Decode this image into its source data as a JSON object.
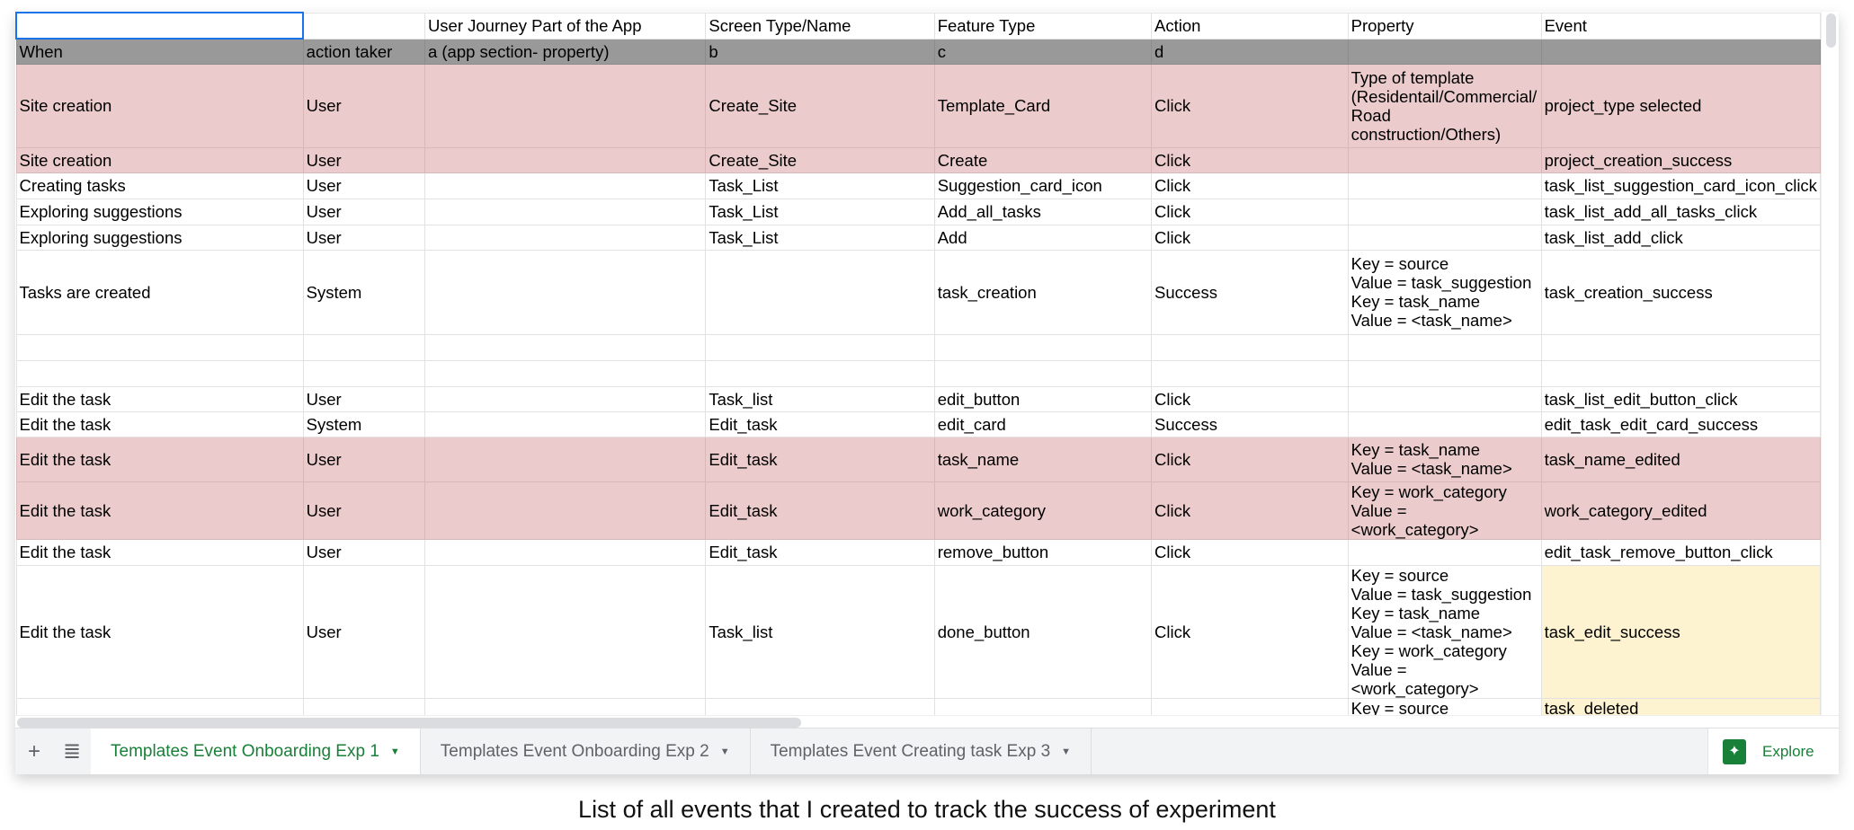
{
  "columns": [
    "",
    "",
    "User Journey Part of the App",
    "Screen Type/Name",
    "Feature Type",
    "Action",
    "Property",
    "Event"
  ],
  "rows": [
    {
      "style": "gray",
      "cells": [
        "When",
        "action taker",
        "a (app section- property)",
        "b",
        "c",
        "d",
        "",
        ""
      ]
    },
    {
      "style": "pink",
      "cells": [
        "Site creation",
        "User",
        "",
        "Create_Site",
        "Template_Card",
        "Click",
        "Type of template\n(Residentail/Commercial/\nRoad\nconstruction/Others)",
        "project_type selected"
      ]
    },
    {
      "style": "pink",
      "cells": [
        "Site creation",
        "User",
        "",
        "Create_Site",
        "Create",
        "Click",
        "",
        "project_creation_success"
      ]
    },
    {
      "style": "",
      "cells": [
        "Creating tasks",
        "User",
        "",
        "Task_List",
        "Suggestion_card_icon",
        "Click",
        "",
        "task_list_suggestion_card_icon_click"
      ]
    },
    {
      "style": "",
      "cells": [
        "Exploring suggestions",
        "User",
        "",
        "Task_List",
        "Add_all_tasks",
        "Click",
        "",
        "task_list_add_all_tasks_click"
      ]
    },
    {
      "style": "",
      "cells": [
        "Exploring suggestions",
        "User",
        "",
        "Task_List",
        "Add",
        "Click",
        "",
        "task_list_add_click"
      ]
    },
    {
      "style": "",
      "cells": [
        "Tasks are created",
        "System",
        "",
        "",
        "task_creation",
        "Success",
        "Key = source\nValue = task_suggestion\nKey = task_name\nValue = <task_name>",
        "task_creation_success"
      ]
    },
    {
      "style": "",
      "cells": [
        "",
        "",
        "",
        "",
        "",
        "",
        "",
        ""
      ]
    },
    {
      "style": "",
      "cells": [
        "",
        "",
        "",
        "",
        "",
        "",
        "",
        ""
      ]
    },
    {
      "style": "",
      "cells": [
        "Edit the task",
        "User",
        "",
        "Task_list",
        "edit_button",
        "Click",
        "",
        "task_list_edit_button_click"
      ]
    },
    {
      "style": "",
      "cells": [
        "Edit the task",
        "System",
        "",
        "Edit_task",
        "edit_card",
        "Success",
        "",
        "edit_task_edit_card_success"
      ]
    },
    {
      "style": "pink",
      "cells": [
        "Edit the task",
        "User",
        "",
        "Edit_task",
        "task_name",
        "Click",
        "Key = task_name\nValue = <task_name>",
        "task_name_edited"
      ]
    },
    {
      "style": "pink",
      "cells": [
        "Edit the task",
        "User",
        "",
        "Edit_task",
        "work_category",
        "Click",
        "Key = work_category\nValue = <work_category>",
        "work_category_edited"
      ]
    },
    {
      "style": "",
      "cells": [
        "Edit the task",
        "User",
        "",
        "Edit_task",
        "remove_button",
        "Click",
        "",
        "edit_task_remove_button_click"
      ]
    },
    {
      "style": "",
      "yellow_event": true,
      "cells": [
        "Edit the task",
        "User",
        "",
        "Task_list",
        "done_button",
        "Click",
        "Key = source\nValue = task_suggestion\nKey = task_name\nValue = <task_name>\nKey = work_category\nValue = <work_category>",
        "task_edit_success"
      ]
    },
    {
      "style": "",
      "yellow_event": true,
      "cells": [
        "",
        "",
        "",
        "",
        "",
        "",
        "Key = source\nValue = task_suggestion",
        "task_deleted"
      ]
    }
  ],
  "tabs": [
    {
      "label": "Templates Event Onboarding Exp 1",
      "active": true
    },
    {
      "label": "Templates Event Onboarding Exp 2",
      "active": false
    },
    {
      "label": "Templates Event Creating task Exp 3",
      "active": false
    }
  ],
  "explore_label": "Explore",
  "caption": "List of all events that I created to track the success of experiment",
  "colors": {
    "pink": "#ebcbcb",
    "gray": "#999999",
    "yellow": "#fdf3d0",
    "accent": "#188038"
  }
}
